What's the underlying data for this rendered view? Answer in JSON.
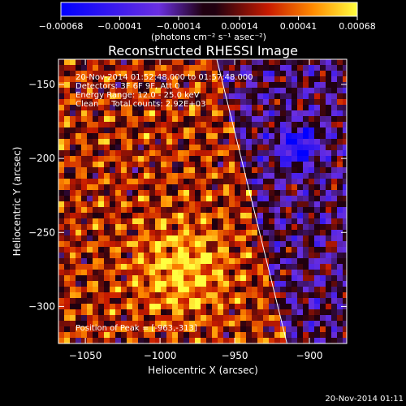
{
  "chart_data": {
    "type": "heatmap",
    "title": "Reconstructed RHESSI Image",
    "xlabel": "Heliocentric X (arcsec)",
    "ylabel": "Heliocentric Y (arcsec)",
    "xlim": [
      -1068,
      -875
    ],
    "ylim": [
      -325,
      -133
    ],
    "x_ticks": [
      {
        "value": -1050,
        "label": "−1050"
      },
      {
        "value": -1000,
        "label": "−1000"
      },
      {
        "value": -950,
        "label": "−950"
      },
      {
        "value": -900,
        "label": "−900"
      }
    ],
    "y_ticks": [
      {
        "value": -150,
        "label": "−150"
      },
      {
        "value": -200,
        "label": "−200"
      },
      {
        "value": -250,
        "label": "−250"
      },
      {
        "value": -300,
        "label": "−300"
      }
    ],
    "colorbar": {
      "min": -0.00068,
      "max": 0.00068,
      "ticks": [
        {
          "value": -0.00068,
          "label": "−0.00068"
        },
        {
          "value": -0.00041,
          "label": "−0.00041"
        },
        {
          "value": -0.00014,
          "label": "−0.00014"
        },
        {
          "value": 0.00014,
          "label": "0.00014"
        },
        {
          "value": 0.00041,
          "label": "0.00041"
        },
        {
          "value": 0.00068,
          "label": "0.00068"
        }
      ],
      "units": "(photons cm⁻² s⁻¹ asec⁻²)"
    },
    "annotations": [
      "20-Nov-2014 01:52:48.000 to 01:57:48.000",
      "Detectors: 3F 6F 9F, Att 0",
      "Energy Range: 12.0 - 25.0 keV",
      "Clean     Total counts: 2.92E+03"
    ],
    "peak_label": "Position of Peak = [-963,-313]",
    "limb_line": {
      "x": [
        -962,
        -915
      ],
      "y": [
        -133,
        -325
      ]
    },
    "peak": {
      "x": -963,
      "y": -313
    },
    "grid": false
  },
  "footer": {
    "timestamp": "20-Nov-2014 01:11"
  }
}
